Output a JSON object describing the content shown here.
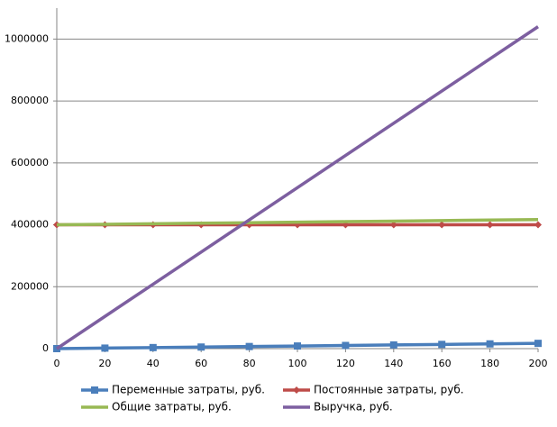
{
  "chart_data": {
    "type": "line",
    "x": [
      0,
      20,
      40,
      60,
      80,
      100,
      120,
      140,
      160,
      180,
      200
    ],
    "series": [
      {
        "name": "Переменные затраты, руб.",
        "color": "#4a7ebb",
        "marker": "square",
        "values": [
          0,
          1700,
          3400,
          5100,
          6800,
          8500,
          10200,
          11900,
          13600,
          15300,
          17000
        ]
      },
      {
        "name": "Постоянные затраты, руб.",
        "color": "#be4b48",
        "marker": "diamond",
        "values": [
          400000,
          400000,
          400000,
          400000,
          400000,
          400000,
          400000,
          400000,
          400000,
          400000,
          400000
        ]
      },
      {
        "name": "Общие затраты, руб.",
        "color": "#98b954",
        "values": [
          400000,
          401700,
          403400,
          405100,
          406800,
          408500,
          410200,
          411900,
          413600,
          415300,
          417000
        ]
      },
      {
        "name": "Выручка, руб.",
        "color": "#7d5fa0",
        "values": [
          0,
          104000,
          208000,
          312000,
          416000,
          520000,
          624000,
          728000,
          832000,
          936000,
          1040000
        ]
      }
    ],
    "xlim": [
      0,
      200
    ],
    "xticks": [
      0,
      20,
      40,
      60,
      80,
      100,
      120,
      140,
      160,
      180,
      200
    ],
    "ylim": [
      0,
      1100000
    ],
    "yticks": [
      0,
      200000,
      400000,
      600000,
      800000,
      1000000
    ],
    "grid": true,
    "legend": "bottom"
  }
}
